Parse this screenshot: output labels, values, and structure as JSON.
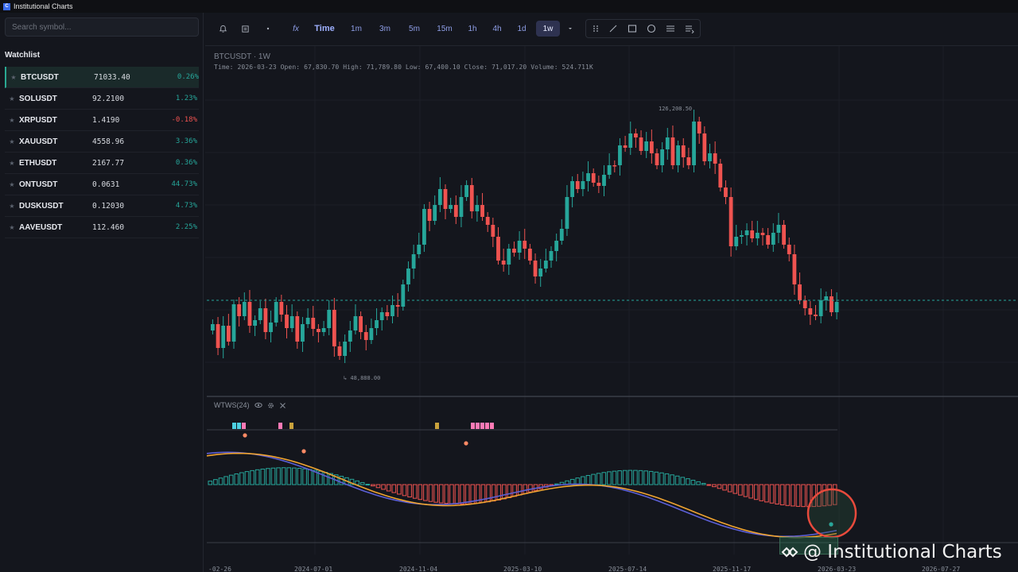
{
  "window": {
    "title": "Institutional Charts",
    "icon": "app-icon"
  },
  "sidebar": {
    "search_placeholder": "Search symbol...",
    "watchlist_title": "Watchlist",
    "items": [
      {
        "symbol": "BTCUSDT",
        "price": "71033.40",
        "change": "0.26%",
        "dir": "up",
        "active": true
      },
      {
        "symbol": "SOLUSDT",
        "price": "92.2100",
        "change": "1.23%",
        "dir": "up",
        "active": false
      },
      {
        "symbol": "XRPUSDT",
        "price": "1.4190",
        "change": "-0.18%",
        "dir": "down",
        "active": false
      },
      {
        "symbol": "XAUUSDT",
        "price": "4558.96",
        "change": "3.36%",
        "dir": "up",
        "active": false
      },
      {
        "symbol": "ETHUSDT",
        "price": "2167.77",
        "change": "0.36%",
        "dir": "up",
        "active": false
      },
      {
        "symbol": "ONTUSDT",
        "price": "0.0631",
        "change": "44.73%",
        "dir": "up",
        "active": false
      },
      {
        "symbol": "DUSKUSDT",
        "price": "0.12030",
        "change": "4.73%",
        "dir": "up",
        "active": false
      },
      {
        "symbol": "AAVEUSDT",
        "price": "112.460",
        "change": "2.25%",
        "dir": "up",
        "active": false
      }
    ]
  },
  "toolbar": {
    "fx_label": "fx",
    "time_label": "Time",
    "intervals": [
      "1m",
      "3m",
      "5m",
      "15m",
      "1h",
      "4h",
      "1d",
      "1w"
    ],
    "active_interval": "1w",
    "icons": [
      "alert-bell-icon",
      "layout-icon",
      "dropdown-dot-icon",
      "interval-dropdown-icon",
      "grid-dots-icon",
      "trendline-icon",
      "rectangle-icon",
      "circle-icon",
      "horizontal-lines-icon",
      "indicator-settings-icon"
    ]
  },
  "chart": {
    "legend_title": "BTCUSDT · 1W",
    "legend_ohlc": "Time: 2026-03-23   Open: 67,830.70   High: 71,789.80   Low: 67,400.10   Close: 71,017.20   Volume: 524.711K",
    "high_label": "126,208.50",
    "low_label": "48,888.00",
    "x_ticks": [
      "-02-26",
      "2024-07-01",
      "2024-11-04",
      "2025-03-10",
      "2025-07-14",
      "2025-11-17",
      "2026-03-23",
      "2026-07-27"
    ],
    "colors": {
      "up": "#26a69a",
      "down": "#ef5350",
      "grid": "#1c1f27",
      "bg": "#14161d"
    }
  },
  "indicator": {
    "name": "WTWS(24)",
    "icons": [
      "eye-icon",
      "gear-icon",
      "close-icon"
    ]
  },
  "watermark": {
    "text": "@ Institutional Charts"
  }
}
